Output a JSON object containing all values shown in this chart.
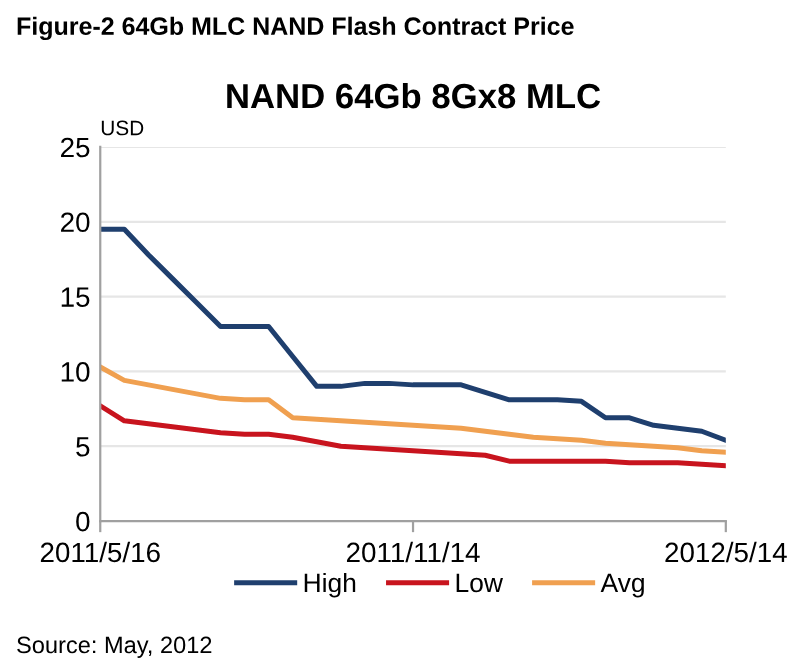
{
  "chart_data": {
    "type": "line",
    "title": "NAND 64Gb 8Gx8 MLC",
    "subtitle": "Figure-2 64Gb MLC NAND Flash Contract Price",
    "ylabel": "USD",
    "categories": [
      "2011/5/16",
      null,
      null,
      null,
      null,
      null,
      null,
      null,
      null,
      null,
      null,
      null,
      null,
      "2011/11/14",
      null,
      null,
      null,
      null,
      null,
      null,
      null,
      null,
      null,
      null,
      null,
      null,
      "2012/5/14"
    ],
    "series": [
      {
        "name": "High",
        "color": "#1f3f6e",
        "values": [
          19.5,
          19.5,
          17.8,
          16.2,
          14.6,
          13,
          13,
          13,
          11,
          9,
          9,
          9.2,
          9.2,
          9.1,
          9.1,
          9.1,
          8.6,
          8.1,
          8.1,
          8.1,
          8.0,
          6.9,
          6.9,
          6.4,
          6.2,
          6.0,
          5.4
        ]
      },
      {
        "name": "Low",
        "color": "#c8141e",
        "values": [
          7.7,
          6.7,
          6.5,
          6.3,
          6.1,
          5.9,
          5.8,
          5.8,
          5.6,
          5.3,
          5.0,
          4.9,
          4.8,
          4.7,
          4.6,
          4.5,
          4.4,
          4.0,
          4.0,
          4.0,
          4.0,
          4.0,
          3.9,
          3.9,
          3.9,
          3.8,
          3.7
        ]
      },
      {
        "name": "Avg",
        "color": "#f0a050",
        "values": [
          10.3,
          9.4,
          9.1,
          8.8,
          8.5,
          8.2,
          8.1,
          8.1,
          6.9,
          6.8,
          6.7,
          6.6,
          6.5,
          6.4,
          6.3,
          6.2,
          6.0,
          5.8,
          5.6,
          5.5,
          5.4,
          5.2,
          5.1,
          5.0,
          4.9,
          4.7,
          4.6
        ]
      }
    ],
    "ylim": [
      0,
      25
    ],
    "yticks": [
      0,
      5,
      10,
      15,
      20,
      25
    ],
    "grid": "y",
    "legend": "bottom",
    "marker": "none",
    "line_style": "solid",
    "annotations": [
      "Source: May, 2012"
    ]
  }
}
